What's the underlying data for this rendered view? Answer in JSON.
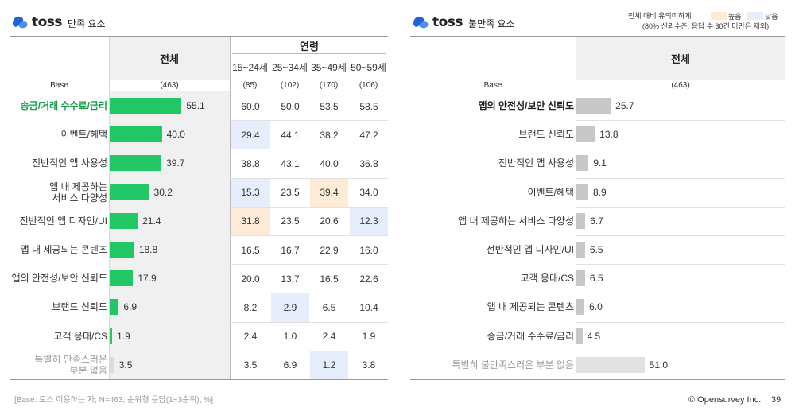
{
  "brand": {
    "logo_text": "toss"
  },
  "left": {
    "subtitle": "만족 요소",
    "header_total": "전체",
    "header_age": "연령",
    "age_groups": [
      "15~24세",
      "25~34세",
      "35~49세",
      "50~59세"
    ],
    "base_label": "Base",
    "base_total": "(463)",
    "base_ages": [
      "(85)",
      "(102)",
      "(170)",
      "(106)"
    ]
  },
  "right": {
    "subtitle": "불만족 요소",
    "header_total": "전체",
    "base_label": "Base",
    "base_total": "(463)"
  },
  "legend": {
    "note_line1": "전체 대비 유의미하게",
    "note_line2": "(80% 신뢰수준, 응답 수 30건 미만은 제외)",
    "high_label": "높음",
    "low_label": "낮음",
    "high_color": "#fdebd8",
    "low_color": "#e6edfb"
  },
  "chart_data": [
    {
      "type": "bar",
      "orientation": "horizontal",
      "title": "만족 요소",
      "categories": [
        "송금/거래 수수료/금리",
        "이벤트/혜택",
        "전반적인 앱 사용성",
        "앱 내 제공하는 서비스 다양성",
        "전반적인 앱 디자인/UI",
        "앱 내 제공되는 콘텐츠",
        "앱의 안전성/보안 신뢰도",
        "브랜드 신뢰도",
        "고객 응대/CS",
        "특별히 만족스러운 부분 없음"
      ],
      "label_lines": [
        [
          "송금/거래 수수료/금리"
        ],
        [
          "이벤트/혜택"
        ],
        [
          "전반적인 앱 사용성"
        ],
        [
          "앱 내 제공하는",
          "서비스 다양성"
        ],
        [
          "전반적인 앱 디자인/UI"
        ],
        [
          "앱 내 제공되는 콘텐츠"
        ],
        [
          "앱의 안전성/보안 신뢰도"
        ],
        [
          "브랜드 신뢰도"
        ],
        [
          "고객 응대/CS"
        ],
        [
          "특별히 만족스러운",
          "부분 없음"
        ]
      ],
      "series": [
        {
          "name": "전체",
          "values": [
            55.1,
            40.0,
            39.7,
            30.2,
            21.4,
            18.8,
            17.9,
            6.9,
            1.9,
            3.5
          ]
        },
        {
          "name": "15~24세",
          "values": [
            60.0,
            29.4,
            38.8,
            15.3,
            31.8,
            16.5,
            20.0,
            8.2,
            2.4,
            3.5
          ]
        },
        {
          "name": "25~34세",
          "values": [
            50.0,
            44.1,
            43.1,
            23.5,
            23.5,
            16.7,
            13.7,
            2.9,
            1.0,
            6.9
          ]
        },
        {
          "name": "35~49세",
          "values": [
            53.5,
            38.2,
            40.0,
            39.4,
            20.6,
            22.9,
            16.5,
            6.5,
            2.4,
            1.2
          ]
        },
        {
          "name": "50~59세",
          "values": [
            58.5,
            47.2,
            36.8,
            34.0,
            12.3,
            16.0,
            22.6,
            10.4,
            1.9,
            3.8
          ]
        }
      ],
      "significance": [
        [
          "",
          "",
          "",
          ""
        ],
        [
          "low",
          "",
          "",
          ""
        ],
        [
          "",
          "",
          "",
          ""
        ],
        [
          "low",
          "",
          "high",
          ""
        ],
        [
          "high",
          "",
          "",
          "low"
        ],
        [
          "",
          "",
          "",
          ""
        ],
        [
          "",
          "",
          "",
          ""
        ],
        [
          "",
          "low",
          "",
          ""
        ],
        [
          "",
          "",
          "",
          ""
        ],
        [
          "",
          "",
          "low",
          ""
        ]
      ],
      "bar_color": "#22c766",
      "muted_bar_color": "#dcdcdc",
      "label_styles": [
        "hl",
        "",
        "",
        "",
        "",
        "",
        "",
        "",
        "",
        "muted"
      ]
    },
    {
      "type": "bar",
      "orientation": "horizontal",
      "title": "불만족 요소",
      "categories": [
        "앱의 안전성/보안 신뢰도",
        "브랜드 신뢰도",
        "전반적인 앱 사용성",
        "이벤트/혜택",
        "앱 내 제공하는 서비스 다양성",
        "전반적인 앱 디자인/UI",
        "고객 응대/CS",
        "앱 내 제공되는 콘텐츠",
        "송금/거래 수수료/금리",
        "특별히 불만족스러운 부분 없음"
      ],
      "label_lines": [
        [
          "앱의 안전성/보안 신뢰도"
        ],
        [
          "브랜드 신뢰도"
        ],
        [
          "전반적인 앱 사용성"
        ],
        [
          "이벤트/혜택"
        ],
        [
          "앱 내 제공하는 서비스 다양성"
        ],
        [
          "전반적인 앱 디자인/UI"
        ],
        [
          "고객 응대/CS"
        ],
        [
          "앱 내 제공되는 콘텐츠"
        ],
        [
          "송금/거래 수수료/금리"
        ],
        [
          "특별히 불만족스러운 부분 없음"
        ]
      ],
      "series": [
        {
          "name": "전체",
          "values": [
            25.7,
            13.8,
            9.1,
            8.9,
            6.7,
            6.5,
            6.5,
            6.0,
            4.5,
            51.0
          ]
        }
      ],
      "bar_color": "#c8c8c8",
      "muted_bar_color": "#e2e2e2",
      "label_styles": [
        "bold",
        "",
        "",
        "",
        "",
        "",
        "",
        "",
        "",
        "muted"
      ]
    }
  ],
  "footer": {
    "footnote": "[Base: 토스 이용하는 자, N=463, 순위형 응답(1~3순위), %]",
    "copyright": "© Opensurvey Inc.",
    "page_number": "39"
  }
}
